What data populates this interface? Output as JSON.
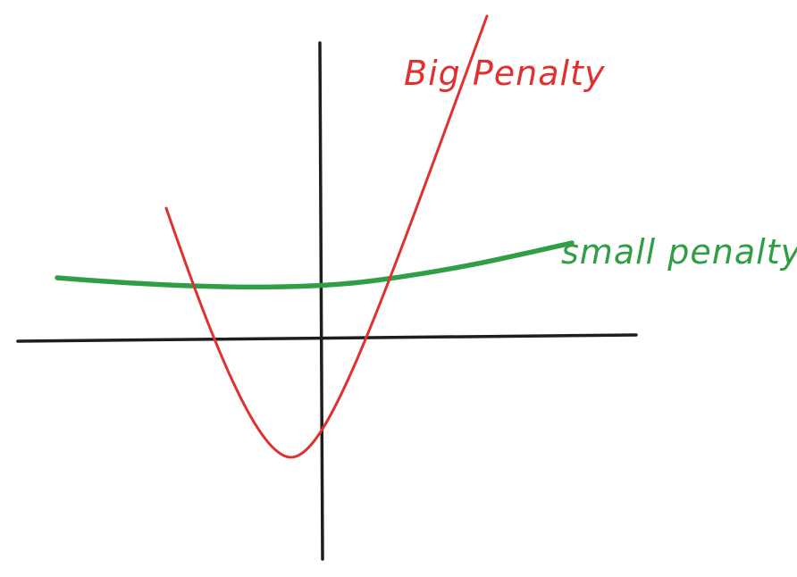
{
  "diagram": {
    "axes_color": "#1e1e1e",
    "curves": [
      {
        "id": "big",
        "label": "Big Penalty",
        "color": "#e03131"
      },
      {
        "id": "small",
        "label": "small penalty",
        "color": "#2f9e44"
      }
    ]
  }
}
